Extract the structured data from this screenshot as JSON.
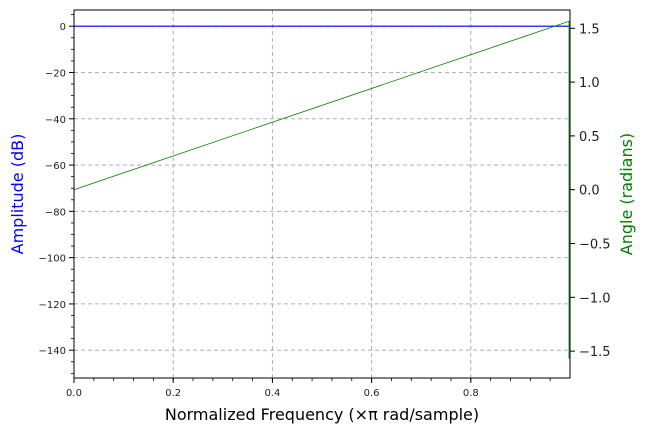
{
  "chart_data": {
    "type": "line",
    "title": "",
    "xlabel": "Normalized Frequency (×π rad/sample)",
    "ylabel_left": "Amplitude (dB)",
    "ylabel_right": "Angle (radians)",
    "xlim": [
      0.0,
      1.0
    ],
    "ylim_left": [
      -152,
      7
    ],
    "ylim_right": [
      -1.75,
      1.67
    ],
    "x_ticks": [
      0.0,
      0.2,
      0.4,
      0.6,
      0.8
    ],
    "x_tick_labels": [
      "0.0",
      "0.2",
      "0.4",
      "0.6",
      "0.8"
    ],
    "y_left_ticks": [
      0,
      -20,
      -40,
      -60,
      -80,
      -100,
      -120,
      -140
    ],
    "y_left_tick_labels": [
      "0",
      "−20",
      "−40",
      "−60",
      "−80",
      "−100",
      "−120",
      "−140"
    ],
    "y_right_ticks": [
      1.5,
      1.0,
      0.5,
      0.0,
      -0.5,
      -1.0,
      -1.5
    ],
    "y_right_tick_labels": [
      "1.5",
      "1.0",
      "0.5",
      "0.0",
      "−0.5",
      "−1.0",
      "−1.5"
    ],
    "grid": true,
    "series": [
      {
        "axis": "left",
        "color": "#0000ff",
        "x": [
          0.0,
          0.998
        ],
        "y": [
          0,
          0
        ]
      },
      {
        "axis": "right",
        "color": "#008000",
        "x": [
          0.0,
          0.998,
          0.998
        ],
        "y": [
          0.0,
          1.565,
          -1.57
        ]
      }
    ],
    "colors": {
      "left_label": "#0000ff",
      "right_label": "#008000",
      "grid": "#b0b0b0",
      "axis": "#000000"
    }
  }
}
